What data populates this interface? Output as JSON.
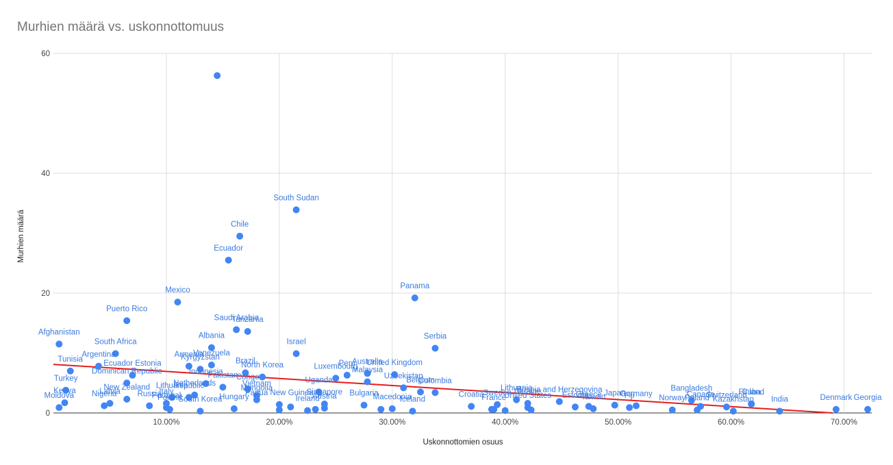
{
  "chart_data": {
    "type": "scatter",
    "title": "Murhien määrä vs. uskonnottomuus",
    "xlabel": "Uskonnottomien osuus",
    "ylabel": "Murhien määrä",
    "xlim": [
      0.0,
      0.7246
    ],
    "ylim": [
      0,
      60
    ],
    "x_ticks": [
      0.1,
      0.2,
      0.3,
      0.4,
      0.5,
      0.6,
      0.7
    ],
    "x_tick_labels": [
      "10.00%",
      "20.00%",
      "30.00%",
      "40.00%",
      "50.00%",
      "60.00%",
      "70.00%"
    ],
    "y_ticks": [
      0,
      20,
      40,
      60
    ],
    "y_tick_labels": [
      "0",
      "20",
      "40",
      "60"
    ],
    "grid": true,
    "legend": "none",
    "colors": {
      "points": "#4285f4",
      "labels": "#3b7be0",
      "trendline": "#e51c1c",
      "grid": "#dddddd"
    },
    "trendline": {
      "x": [
        0.0,
        0.69
      ],
      "y": [
        8.1,
        0
      ]
    },
    "points": [
      {
        "x": 0.005,
        "y": 11.5,
        "label": "Afghanistan"
      },
      {
        "x": 0.015,
        "y": 7.0,
        "label": "Tunisia"
      },
      {
        "x": 0.005,
        "y": 0.9,
        "label": "Moldova"
      },
      {
        "x": 0.01,
        "y": 1.7,
        "label": "Kenya"
      },
      {
        "x": 0.011,
        "y": 3.8,
        "label": "Turkey"
      },
      {
        "x": 0.04,
        "y": 7.8,
        "label": "Argentina"
      },
      {
        "x": 0.055,
        "y": 9.9,
        "label": "South Africa"
      },
      {
        "x": 0.065,
        "y": 15.4,
        "label": "Puerto Rico"
      },
      {
        "x": 0.045,
        "y": 1.2,
        "label": "Nigeria"
      },
      {
        "x": 0.05,
        "y": 1.6,
        "label": "Latvia"
      },
      {
        "x": 0.065,
        "y": 2.3,
        "label": "New Zealand"
      },
      {
        "x": 0.065,
        "y": 5.0,
        "label": "Dominican Republic"
      },
      {
        "x": 0.07,
        "y": 6.3,
        "label": "Ecuador Estonia"
      },
      {
        "x": 0.085,
        "y": 1.2,
        "label": "Russia"
      },
      {
        "x": 0.1,
        "y": 1.6,
        "label": "Italy"
      },
      {
        "x": 0.1,
        "y": 0.9,
        "label": "Portugal"
      },
      {
        "x": 0.105,
        "y": 2.6,
        "label": "Lithuania"
      },
      {
        "x": 0.103,
        "y": 0.6,
        "label": "Poland"
      },
      {
        "x": 0.11,
        "y": 18.5,
        "label": "Mexico"
      },
      {
        "x": 0.12,
        "y": 7.8,
        "label": "Armenia"
      },
      {
        "x": 0.125,
        "y": 3.0,
        "label": "Netherlands"
      },
      {
        "x": 0.13,
        "y": 0.3,
        "label": "South Korea"
      },
      {
        "x": 0.12,
        "y": 2.6,
        "label": "Republic"
      },
      {
        "x": 0.13,
        "y": 7.3,
        "label": "Kyrgyzstan"
      },
      {
        "x": 0.14,
        "y": 10.9,
        "label": "Albania"
      },
      {
        "x": 0.135,
        "y": 4.9,
        "label": "Indonesia"
      },
      {
        "x": 0.14,
        "y": 8.0,
        "label": "Venezuela"
      },
      {
        "x": 0.145,
        "y": 56.3,
        "label": ""
      },
      {
        "x": 0.15,
        "y": 4.3,
        "label": "Pakistan"
      },
      {
        "x": 0.155,
        "y": 25.5,
        "label": "Ecuador"
      },
      {
        "x": 0.165,
        "y": 29.5,
        "label": "Chile"
      },
      {
        "x": 0.162,
        "y": 13.9,
        "label": "Saudi Arabia"
      },
      {
        "x": 0.172,
        "y": 13.6,
        "label": "Tanzania"
      },
      {
        "x": 0.172,
        "y": 4.0,
        "label": "Congo"
      },
      {
        "x": 0.17,
        "y": 6.7,
        "label": "Brazil"
      },
      {
        "x": 0.16,
        "y": 0.7,
        "label": "Hungary"
      },
      {
        "x": 0.18,
        "y": 2.2,
        "label": "Mongolia"
      },
      {
        "x": 0.18,
        "y": 2.9,
        "label": "Vietnam"
      },
      {
        "x": 0.185,
        "y": 6.0,
        "label": "North Korea"
      },
      {
        "x": 0.2,
        "y": 1.4,
        "label": "Papua New Guinea"
      },
      {
        "x": 0.2,
        "y": 0.5,
        "label": ""
      },
      {
        "x": 0.21,
        "y": 1.0,
        "label": ""
      },
      {
        "x": 0.215,
        "y": 33.9,
        "label": "South Sudan"
      },
      {
        "x": 0.215,
        "y": 9.9,
        "label": "Israel"
      },
      {
        "x": 0.225,
        "y": 0.4,
        "label": "Ireland"
      },
      {
        "x": 0.232,
        "y": 0.6,
        "label": ""
      },
      {
        "x": 0.24,
        "y": 1.5,
        "label": "Singapore"
      },
      {
        "x": 0.24,
        "y": 0.8,
        "label": "Austria"
      },
      {
        "x": 0.235,
        "y": 3.5,
        "label": "Uganda"
      },
      {
        "x": 0.25,
        "y": 5.8,
        "label": "Luxembourg"
      },
      {
        "x": 0.26,
        "y": 6.3,
        "label": "Peru"
      },
      {
        "x": 0.275,
        "y": 1.3,
        "label": "Bulgaria"
      },
      {
        "x": 0.278,
        "y": 5.2,
        "label": "Malaysia"
      },
      {
        "x": 0.278,
        "y": 6.6,
        "label": "Australia"
      },
      {
        "x": 0.29,
        "y": 0.6,
        "label": ""
      },
      {
        "x": 0.3,
        "y": 0.7,
        "label": "Macedonia"
      },
      {
        "x": 0.302,
        "y": 6.4,
        "label": "United Kingdom"
      },
      {
        "x": 0.31,
        "y": 4.2,
        "label": "Uzbekistan"
      },
      {
        "x": 0.32,
        "y": 19.2,
        "label": "Panama"
      },
      {
        "x": 0.318,
        "y": 0.3,
        "label": "Iceland"
      },
      {
        "x": 0.325,
        "y": 3.5,
        "label": "Belgium"
      },
      {
        "x": 0.338,
        "y": 3.4,
        "label": "Colombia"
      },
      {
        "x": 0.338,
        "y": 10.8,
        "label": "Serbia"
      },
      {
        "x": 0.37,
        "y": 1.1,
        "label": "Croatia"
      },
      {
        "x": 0.388,
        "y": 0.6,
        "label": ""
      },
      {
        "x": 0.39,
        "y": 0.6,
        "label": "France"
      },
      {
        "x": 0.393,
        "y": 1.4,
        "label": "Sweden"
      },
      {
        "x": 0.4,
        "y": 0.4,
        "label": ""
      },
      {
        "x": 0.41,
        "y": 2.2,
        "label": "Lithuania"
      },
      {
        "x": 0.42,
        "y": 1.6,
        "label": "Ukraine"
      },
      {
        "x": 0.42,
        "y": 0.9,
        "label": "United States"
      },
      {
        "x": 0.423,
        "y": 0.5,
        "label": ""
      },
      {
        "x": 0.448,
        "y": 1.9,
        "label": "Bosnia and Herzegovina"
      },
      {
        "x": 0.462,
        "y": 1.0,
        "label": "Estonia"
      },
      {
        "x": 0.474,
        "y": 1.1,
        "label": "Greece"
      },
      {
        "x": 0.478,
        "y": 0.7,
        "label": "Taiwan"
      },
      {
        "x": 0.497,
        "y": 1.3,
        "label": "Japan"
      },
      {
        "x": 0.51,
        "y": 0.9,
        "label": "Fiji"
      },
      {
        "x": 0.516,
        "y": 1.2,
        "label": "Germany"
      },
      {
        "x": 0.548,
        "y": 0.5,
        "label": "Norway"
      },
      {
        "x": 0.565,
        "y": 2.1,
        "label": "Bangladesh"
      },
      {
        "x": 0.57,
        "y": 0.5,
        "label": "Poland"
      },
      {
        "x": 0.573,
        "y": 1.1,
        "label": "Canada"
      },
      {
        "x": 0.596,
        "y": 1.0,
        "label": "Switzerland"
      },
      {
        "x": 0.602,
        "y": 0.3,
        "label": "Kazakhstan"
      },
      {
        "x": 0.618,
        "y": 1.5,
        "label": "Finland"
      },
      {
        "x": 0.618,
        "y": 1.5,
        "label": "Cuba"
      },
      {
        "x": 0.643,
        "y": 0.3,
        "label": "India"
      },
      {
        "x": 0.693,
        "y": 0.6,
        "label": "Denmark"
      },
      {
        "x": 0.721,
        "y": 0.6,
        "label": "Georgia"
      }
    ]
  }
}
